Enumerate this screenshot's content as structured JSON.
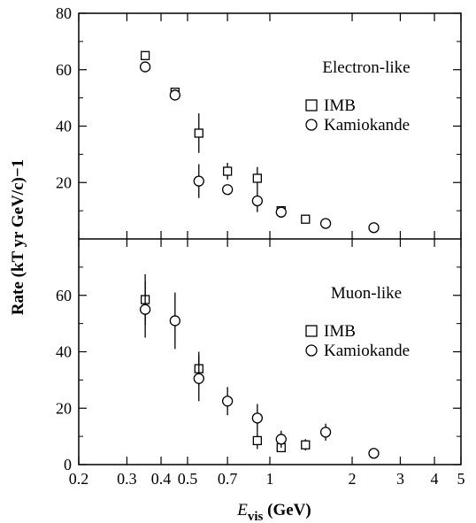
{
  "chart_data": {
    "type": "scatter",
    "x_scale": "log",
    "x_ticks": [
      0.2,
      0.3,
      0.4,
      0.5,
      0.7,
      1,
      2,
      3,
      4,
      5
    ],
    "x_tick_labels": [
      "0.2",
      "0.3",
      "0.4",
      "0.5",
      "0.7",
      "1",
      "2",
      "3",
      "4",
      "5"
    ],
    "xlim": [
      0.2,
      5
    ],
    "xlabel": {
      "main": "E",
      "sub": "vis",
      "unit": "(GeV)"
    },
    "ylabel": "Rate  (kT yr GeV/c)−1",
    "panels": [
      {
        "label": "Electron-like",
        "ylim": [
          0,
          80
        ],
        "y_ticks": [
          20,
          40,
          60,
          80
        ],
        "y_tick_labels": [
          "20",
          "40",
          "60",
          "80"
        ],
        "legend": [
          "IMB",
          "Kamiokande"
        ],
        "series": [
          {
            "name": "IMB",
            "marker": "square",
            "points": [
              {
                "x": 0.35,
                "y": 65
              },
              {
                "x": 0.45,
                "y": 52
              },
              {
                "x": 0.55,
                "y": 37.5,
                "err": 7
              },
              {
                "x": 0.7,
                "y": 24,
                "err": 3
              },
              {
                "x": 0.9,
                "y": 21.5,
                "err": 4
              },
              {
                "x": 1.1,
                "y": 10
              },
              {
                "x": 1.35,
                "y": 7
              }
            ]
          },
          {
            "name": "Kamiokande",
            "marker": "circle",
            "points": [
              {
                "x": 0.35,
                "y": 61
              },
              {
                "x": 0.45,
                "y": 51
              },
              {
                "x": 0.55,
                "y": 20.5,
                "err": 6
              },
              {
                "x": 0.7,
                "y": 17.5
              },
              {
                "x": 0.9,
                "y": 13.5,
                "err": 4
              },
              {
                "x": 1.1,
                "y": 9.5,
                "err": 2
              },
              {
                "x": 1.6,
                "y": 5.5
              },
              {
                "x": 2.4,
                "y": 4
              }
            ]
          }
        ]
      },
      {
        "label": "Muon-like",
        "ylim": [
          0,
          80
        ],
        "y_ticks": [
          0,
          20,
          40,
          60
        ],
        "y_tick_labels": [
          "0",
          "20",
          "40",
          "60"
        ],
        "legend": [
          "IMB",
          "Kamiokande"
        ],
        "series": [
          {
            "name": "IMB",
            "marker": "square",
            "points": [
              {
                "x": 0.35,
                "y": 58.5,
                "err": 9
              },
              {
                "x": 0.55,
                "y": 34,
                "err": 6
              },
              {
                "x": 0.9,
                "y": 8.5,
                "err": 3
              },
              {
                "x": 1.1,
                "y": 6
              },
              {
                "x": 1.35,
                "y": 7,
                "err": 2
              }
            ]
          },
          {
            "name": "Kamiokande",
            "marker": "circle",
            "points": [
              {
                "x": 0.35,
                "y": 55,
                "err": 10
              },
              {
                "x": 0.45,
                "y": 51,
                "err": 10
              },
              {
                "x": 0.55,
                "y": 30.5,
                "err": 8
              },
              {
                "x": 0.7,
                "y": 22.5,
                "err": 5
              },
              {
                "x": 0.9,
                "y": 16.5,
                "err": 5
              },
              {
                "x": 1.1,
                "y": 9,
                "err": 3
              },
              {
                "x": 1.6,
                "y": 11.5,
                "err": 3
              },
              {
                "x": 2.4,
                "y": 4
              }
            ]
          }
        ]
      }
    ]
  }
}
